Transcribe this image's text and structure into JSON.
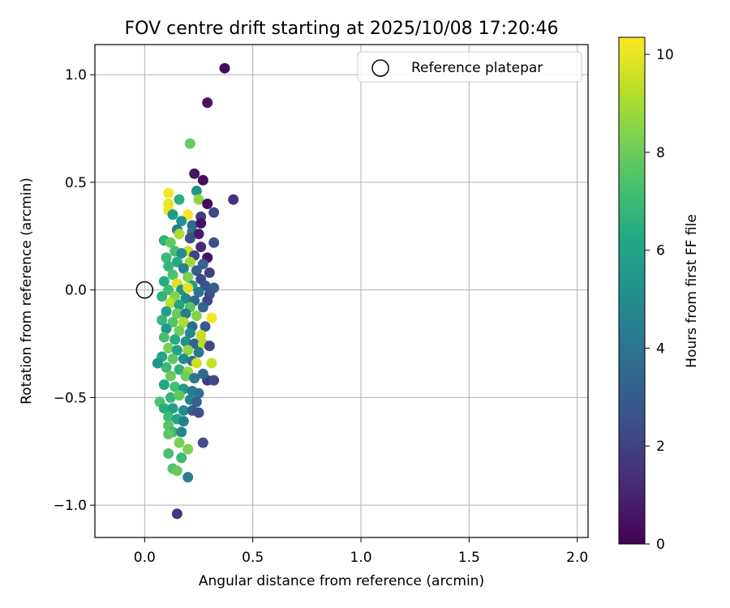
{
  "chart_data": {
    "type": "scatter",
    "title": "FOV centre drift starting at 2025/10/08 17:20:46",
    "xlabel": "Angular distance from reference (arcmin)",
    "ylabel": "Rotation from reference (arcmin)",
    "xlim": [
      -0.23,
      2.05
    ],
    "ylim": [
      -1.15,
      1.14
    ],
    "xticks": [
      0.0,
      0.5,
      1.0,
      1.5,
      2.0
    ],
    "xtick_labels": [
      "0.0",
      "0.5",
      "1.0",
      "1.5",
      "2.0"
    ],
    "yticks": [
      -1.0,
      -0.5,
      0.0,
      0.5,
      1.0
    ],
    "ytick_labels": [
      "−1.0",
      "−0.5",
      "0.0",
      "0.5",
      "1.0"
    ],
    "grid": true,
    "legend": {
      "position": "top-right",
      "entries": [
        {
          "label": "Reference platepar",
          "marker": "open-circle"
        }
      ]
    },
    "reference_point": {
      "x": 0.0,
      "y": 0.0
    },
    "colorbar": {
      "label": "Hours from first FF file",
      "range": [
        0,
        10.35
      ],
      "ticks": [
        0,
        2,
        4,
        6,
        8,
        10
      ],
      "tick_labels": [
        "0",
        "2",
        "4",
        "6",
        "8",
        "10"
      ],
      "colormap": "viridis",
      "colors": [
        "#440154",
        "#482475",
        "#414487",
        "#355f8d",
        "#2a788e",
        "#21918c",
        "#22a884",
        "#44bf70",
        "#7ad151",
        "#bddf26",
        "#fde725"
      ]
    },
    "points_format": [
      "x_arcmin",
      "y_arcmin",
      "hours"
    ],
    "points": [
      [
        0.37,
        1.03,
        0.3
      ],
      [
        0.29,
        0.87,
        0.5
      ],
      [
        0.21,
        0.68,
        7.9
      ],
      [
        0.23,
        0.54,
        0.6
      ],
      [
        0.27,
        0.51,
        0.4
      ],
      [
        0.41,
        0.42,
        1.4
      ],
      [
        0.24,
        0.46,
        5.3
      ],
      [
        0.25,
        0.42,
        8.6
      ],
      [
        0.29,
        0.4,
        0.3
      ],
      [
        0.11,
        0.45,
        10.2
      ],
      [
        0.11,
        0.4,
        10.0
      ],
      [
        0.11,
        0.37,
        10.1
      ],
      [
        0.16,
        0.42,
        6.5
      ],
      [
        0.13,
        0.35,
        5.6
      ],
      [
        0.2,
        0.35,
        10.3
      ],
      [
        0.32,
        0.36,
        2.2
      ],
      [
        0.26,
        0.34,
        1.7
      ],
      [
        0.22,
        0.3,
        3.6
      ],
      [
        0.17,
        0.32,
        5.4
      ],
      [
        0.26,
        0.31,
        0.5
      ],
      [
        0.15,
        0.28,
        4.3
      ],
      [
        0.16,
        0.26,
        9.0
      ],
      [
        0.22,
        0.27,
        3.9
      ],
      [
        0.25,
        0.26,
        0.8
      ],
      [
        0.09,
        0.23,
        6.6
      ],
      [
        0.12,
        0.22,
        7.8
      ],
      [
        0.21,
        0.24,
        2.5
      ],
      [
        0.32,
        0.22,
        2.6
      ],
      [
        0.14,
        0.18,
        7.2
      ],
      [
        0.2,
        0.18,
        9.5
      ],
      [
        0.26,
        0.2,
        1.2
      ],
      [
        0.17,
        0.17,
        5.0
      ],
      [
        0.23,
        0.16,
        2.0
      ],
      [
        0.29,
        0.15,
        0.4
      ],
      [
        0.1,
        0.15,
        7.0
      ],
      [
        0.15,
        0.13,
        6.2
      ],
      [
        0.21,
        0.13,
        8.9
      ],
      [
        0.27,
        0.12,
        3.3
      ],
      [
        0.11,
        0.11,
        6.8
      ],
      [
        0.18,
        0.1,
        4.6
      ],
      [
        0.24,
        0.09,
        3.0
      ],
      [
        0.3,
        0.08,
        1.9
      ],
      [
        0.13,
        0.07,
        7.4
      ],
      [
        0.2,
        0.06,
        8.3
      ],
      [
        0.26,
        0.05,
        2.4
      ],
      [
        0.09,
        0.04,
        6.3
      ],
      [
        0.15,
        0.03,
        9.8
      ],
      [
        0.22,
        0.02,
        5.7
      ],
      [
        0.28,
        0.02,
        2.8
      ],
      [
        0.32,
        0.01,
        3.1
      ],
      [
        0.11,
        0.0,
        7.1
      ],
      [
        0.17,
        0.0,
        5.2
      ],
      [
        0.2,
        0.01,
        9.9
      ],
      [
        0.25,
        -0.01,
        4.1
      ],
      [
        0.3,
        -0.02,
        2.7
      ],
      [
        0.08,
        -0.03,
        6.7
      ],
      [
        0.14,
        -0.03,
        8.4
      ],
      [
        0.19,
        -0.04,
        4.8
      ],
      [
        0.23,
        -0.05,
        3.5
      ],
      [
        0.29,
        -0.05,
        2.2
      ],
      [
        0.12,
        -0.06,
        9.3
      ],
      [
        0.16,
        -0.07,
        6.0
      ],
      [
        0.21,
        -0.08,
        7.6
      ],
      [
        0.27,
        -0.08,
        3.4
      ],
      [
        0.1,
        -0.1,
        5.8
      ],
      [
        0.15,
        -0.11,
        8.0
      ],
      [
        0.19,
        -0.11,
        4.4
      ],
      [
        0.24,
        -0.12,
        8.5
      ],
      [
        0.31,
        -0.13,
        10.2
      ],
      [
        0.08,
        -0.14,
        6.9
      ],
      [
        0.13,
        -0.15,
        7.5
      ],
      [
        0.18,
        -0.15,
        9.1
      ],
      [
        0.22,
        -0.17,
        3.7
      ],
      [
        0.28,
        -0.17,
        2.9
      ],
      [
        0.1,
        -0.18,
        5.5
      ],
      [
        0.16,
        -0.19,
        8.1
      ],
      [
        0.21,
        -0.2,
        4.7
      ],
      [
        0.26,
        -0.21,
        9.4
      ],
      [
        0.09,
        -0.22,
        7.3
      ],
      [
        0.14,
        -0.23,
        6.4
      ],
      [
        0.19,
        -0.24,
        5.1
      ],
      [
        0.23,
        -0.25,
        3.2
      ],
      [
        0.27,
        -0.25,
        9.2
      ],
      [
        0.3,
        -0.26,
        2.1
      ],
      [
        0.11,
        -0.27,
        8.2
      ],
      [
        0.15,
        -0.28,
        5.9
      ],
      [
        0.2,
        -0.28,
        8.7
      ],
      [
        0.25,
        -0.29,
        4.2
      ],
      [
        0.08,
        -0.31,
        6.1
      ],
      [
        0.13,
        -0.32,
        7.7
      ],
      [
        0.18,
        -0.32,
        4.9
      ],
      [
        0.22,
        -0.33,
        3.8
      ],
      [
        0.24,
        -0.34,
        9.6
      ],
      [
        0.31,
        -0.34,
        9.5
      ],
      [
        0.1,
        -0.36,
        7.0
      ],
      [
        0.16,
        -0.37,
        6.6
      ],
      [
        0.2,
        -0.38,
        8.8
      ],
      [
        0.06,
        -0.34,
        5.3
      ],
      [
        0.29,
        -0.42,
        1.8
      ],
      [
        0.32,
        -0.42,
        2.3
      ],
      [
        0.12,
        -0.4,
        7.9
      ],
      [
        0.19,
        -0.4,
        8.0
      ],
      [
        0.23,
        -0.41,
        4.0
      ],
      [
        0.27,
        -0.39,
        3.6
      ],
      [
        0.09,
        -0.44,
        6.2
      ],
      [
        0.14,
        -0.45,
        7.2
      ],
      [
        0.18,
        -0.46,
        5.6
      ],
      [
        0.22,
        -0.47,
        4.3
      ],
      [
        0.25,
        -0.48,
        3.9
      ],
      [
        0.07,
        -0.52,
        7.4
      ],
      [
        0.12,
        -0.5,
        6.8
      ],
      [
        0.16,
        -0.49,
        7.8
      ],
      [
        0.21,
        -0.51,
        4.6
      ],
      [
        0.24,
        -0.52,
        3.3
      ],
      [
        0.09,
        -0.55,
        6.5
      ],
      [
        0.13,
        -0.55,
        5.7
      ],
      [
        0.18,
        -0.56,
        5.0
      ],
      [
        0.22,
        -0.56,
        3.0
      ],
      [
        0.25,
        -0.57,
        2.6
      ],
      [
        0.11,
        -0.59,
        7.1
      ],
      [
        0.15,
        -0.6,
        6.1
      ],
      [
        0.18,
        -0.61,
        4.5
      ],
      [
        0.11,
        -0.63,
        7.6
      ],
      [
        0.13,
        -0.66,
        6.9
      ],
      [
        0.17,
        -0.66,
        4.7
      ],
      [
        0.27,
        -0.71,
        2.5
      ],
      [
        0.11,
        -0.67,
        7.7
      ],
      [
        0.16,
        -0.71,
        8.2
      ],
      [
        0.2,
        -0.74,
        8.3
      ],
      [
        0.11,
        -0.76,
        7.3
      ],
      [
        0.17,
        -0.78,
        7.0
      ],
      [
        0.13,
        -0.83,
        7.5
      ],
      [
        0.15,
        -0.84,
        7.9
      ],
      [
        0.2,
        -0.87,
        4.4
      ],
      [
        0.15,
        -1.04,
        1.6
      ]
    ]
  }
}
